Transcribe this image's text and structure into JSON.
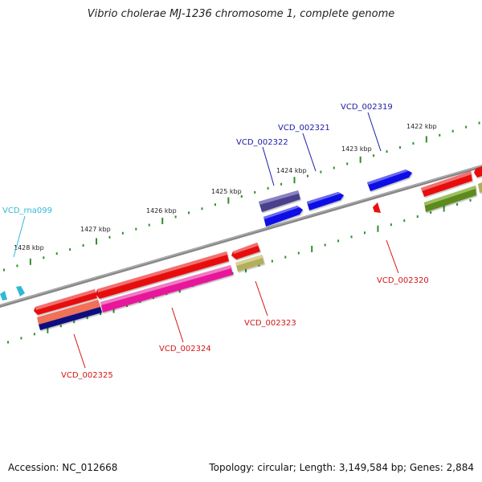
{
  "title": "Vibrio cholerae MJ-1236 chromosome 1, complete genome",
  "footer": {
    "accession": "Accession: NC_012668",
    "summary": "Topology: circular; Length: 3,149,584 bp; Genes: 2,884"
  },
  "colors": {
    "backbone": "#808080",
    "tick": "#2f8f2f",
    "forward_label": "#1a1aa6",
    "reverse_label": "#d41414",
    "rna_label": "#30b8d8"
  },
  "scale_labels": [
    "1422 kbp",
    "1423 kbp",
    "1424 kbp",
    "1425 kbp",
    "1426 kbp",
    "1427 kbp",
    "1428 kbp"
  ],
  "gene_labels": {
    "vcd_002319": "VCD_002319",
    "vcd_002321": "VCD_002321",
    "vcd_002322": "VCD_002322",
    "vcd_rna099": "VCD_rna099",
    "vcd_002320": "VCD_002320",
    "vcd_002323": "VCD_002323",
    "vcd_002324": "VCD_002324",
    "vcd_002325": "VCD_002325"
  }
}
